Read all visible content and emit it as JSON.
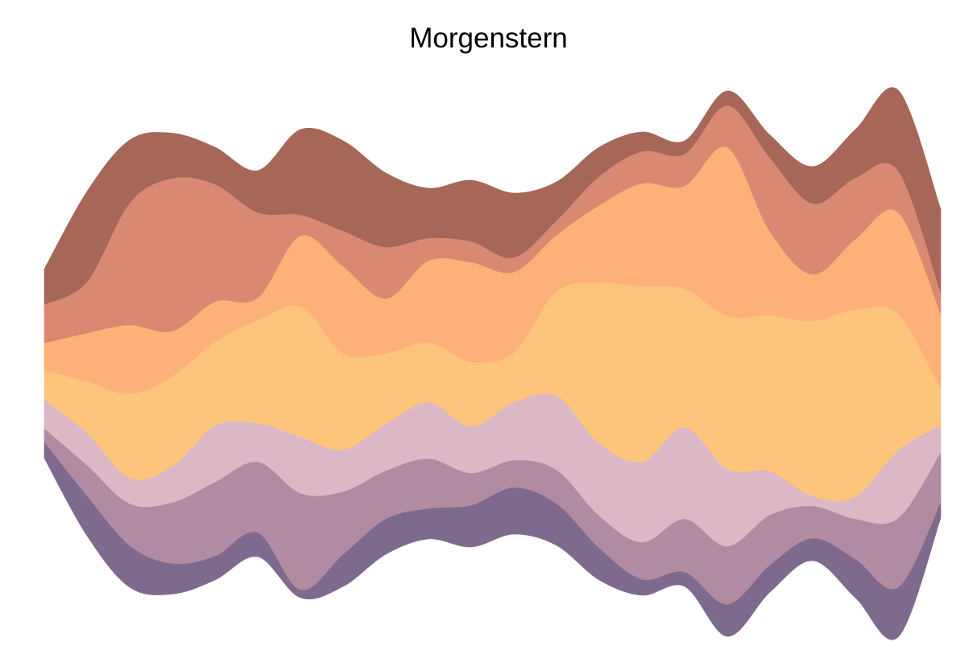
{
  "chart_data": {
    "type": "area",
    "subtype": "streamgraph",
    "title": "Morgenstern",
    "xlabel": "",
    "ylabel": "",
    "axes_visible": false,
    "grid": false,
    "legend": "none",
    "x": [
      0,
      1,
      2,
      3,
      4,
      5,
      6,
      7,
      8,
      9,
      10,
      11,
      12,
      13,
      14,
      15,
      16,
      17,
      18,
      19,
      20,
      21
    ],
    "series": [
      {
        "color": "#7E6A8C",
        "values": [
          20,
          50,
          52,
          38,
          30,
          30,
          10,
          40,
          44,
          38,
          52,
          58,
          52,
          40,
          20,
          18,
          40,
          34,
          28,
          48,
          62,
          20
        ]
      },
      {
        "color": "#B08BA2",
        "values": [
          17,
          38,
          52,
          76,
          92,
          88,
          120,
          78,
          60,
          62,
          40,
          34,
          42,
          40,
          46,
          66,
          72,
          62,
          40,
          50,
          86,
          62
        ]
      },
      {
        "color": "#DCB8C6",
        "values": [
          36,
          40,
          32,
          45,
          70,
          48,
          70,
          52,
          58,
          70,
          58,
          72,
          92,
          90,
          100,
          114,
          96,
          54,
          12,
          28,
          84,
          34
        ]
      },
      {
        "color": "#FDC57C",
        "values": [
          36,
          64,
          104,
          112,
          104,
          128,
          162,
          120,
          88,
          74,
          80,
          62,
          130,
          200,
          218,
          172,
          190,
          194,
          218,
          232,
          170,
          44
        ]
      },
      {
        "color": "#FDB178",
        "values": [
          34,
          60,
          86,
          56,
          50,
          28,
          88,
          108,
          68,
          102,
          124,
          100,
          70,
          96,
          128,
          128,
          210,
          104,
          58,
          88,
          126,
          94
        ]
      },
      {
        "color": "#D98872",
        "values": [
          48,
          64,
          152,
          190,
          146,
          106,
          26,
          44,
          64,
          28,
          26,
          18,
          18,
          36,
          40,
          40,
          52,
          92,
          88,
          76,
          52,
          26
        ]
      },
      {
        "color": "#A66658",
        "values": [
          44,
          112,
          78,
          56,
          46,
          52,
          106,
          112,
          92,
          62,
          76,
          80,
          48,
          36,
          24,
          16,
          18,
          28,
          46,
          60,
          100,
          104
        ]
      }
    ]
  }
}
